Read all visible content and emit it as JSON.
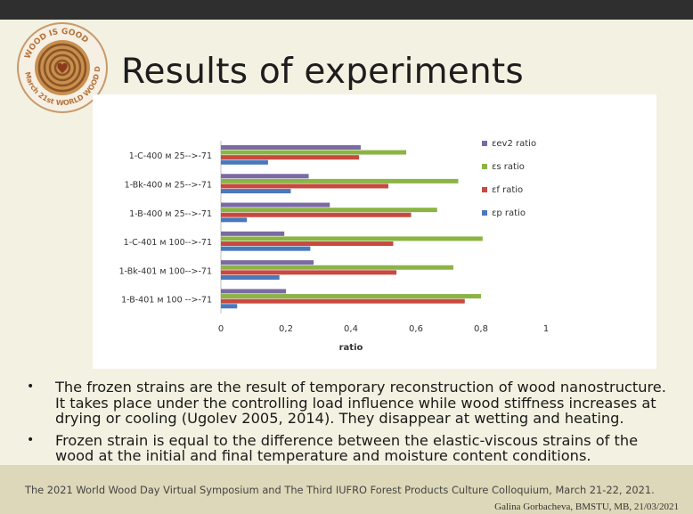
{
  "logo": {
    "text_top": "WOOD IS GOOD",
    "text_bottom": "March 21st WORLD WOOD DAY"
  },
  "slide": {
    "title": "Results of experiments"
  },
  "colors": {
    "ev2": "#7b6aa3",
    "es": "#8bb445",
    "ef": "#c8493f",
    "ep": "#4a78bd"
  },
  "chart_data": {
    "type": "bar",
    "orientation": "horizontal",
    "categories": [
      "1-C-400 м 25-->-71",
      "1-Bk-400 м 25-->-71",
      "1-B-400 м 25-->-71",
      "1-C-401 м 100-->-71",
      "1-Bk-401 м 100-->-71",
      "1-B-401 м 100 -->-71"
    ],
    "series": [
      {
        "name": "εev2 ratio",
        "values": [
          0.43,
          0.27,
          0.335,
          0.195,
          0.285,
          0.2
        ]
      },
      {
        "name": "εs ratio",
        "values": [
          0.57,
          0.73,
          0.665,
          0.805,
          0.715,
          0.8
        ]
      },
      {
        "name": "εf ratio",
        "values": [
          0.425,
          0.515,
          0.585,
          0.53,
          0.54,
          0.75
        ]
      },
      {
        "name": "εp ratio",
        "values": [
          0.145,
          0.215,
          0.08,
          0.275,
          0.18,
          0.05
        ]
      }
    ],
    "xlabel": "ratio",
    "xlim": [
      0,
      1
    ],
    "xticks": [
      "0",
      "0,2",
      "0,4",
      "0,6",
      "0,8",
      "1"
    ],
    "legend_position": "right",
    "grid": false
  },
  "bullets": [
    "The frozen strains are the result of temporary reconstruction of wood nanostructure. It takes place under the controlling load influence while wood stiffness increases at drying or cooling (Ugolev 2005, 2014).  They disappear at wetting and heating.",
    "Frozen strain is equal to the difference between the elastic-viscous strains of the wood at the initial and final temperature and moisture content conditions."
  ],
  "bullet_symbol": "•",
  "footer": {
    "line1": "The 2021 World Wood Day Virtual Symposium and The Third IUFRO Forest Products Culture Colloquium, March 21-22, 2021.",
    "line2": "Galina Gorbacheva, BMSTU, MB, 21/03/2021"
  }
}
